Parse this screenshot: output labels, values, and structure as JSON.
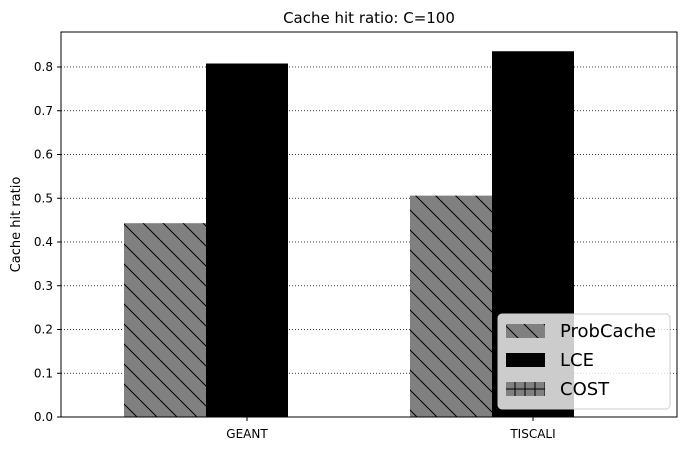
{
  "chart_data": {
    "type": "bar",
    "title": "Cache hit ratio: C=100",
    "xlabel": "",
    "ylabel": "Cache hit ratio",
    "categories": [
      "GEANT",
      "TISCALI"
    ],
    "series": [
      {
        "name": "ProbCache",
        "values": [
          0.443,
          0.506
        ],
        "color": "#808080",
        "hatch": "diagonal"
      },
      {
        "name": "LCE",
        "values": [
          0.808,
          0.836
        ],
        "color": "#000000",
        "hatch": "none"
      },
      {
        "name": "COST",
        "values": [
          0.0,
          0.0
        ],
        "color": "#808080",
        "hatch": "cross"
      }
    ],
    "ylim": [
      0,
      0.88
    ],
    "yticks": [
      0.0,
      0.1,
      0.2,
      0.3,
      0.4,
      0.5,
      0.6,
      0.7,
      0.8
    ],
    "ytick_labels": [
      "0.0",
      "0.1",
      "0.2",
      "0.3",
      "0.4",
      "0.5",
      "0.6",
      "0.7",
      "0.8"
    ],
    "grid": "y-dotted",
    "legend_position": "bottom-right"
  }
}
